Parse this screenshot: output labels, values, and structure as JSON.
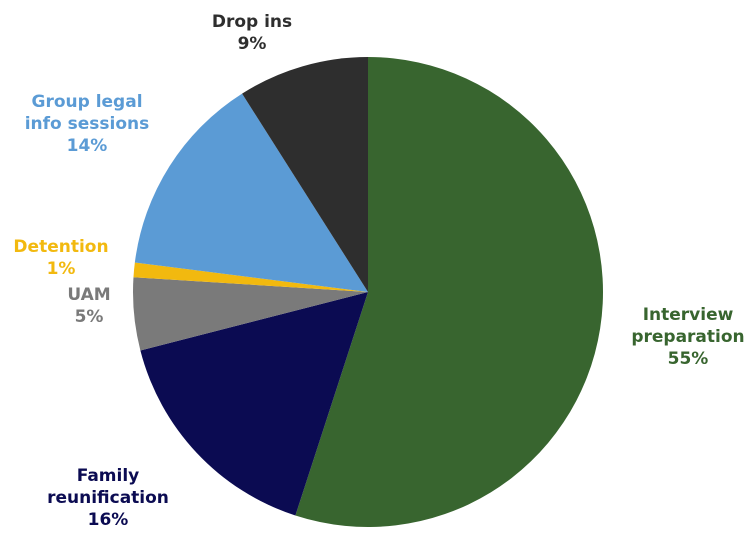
{
  "chart_data": {
    "type": "pie",
    "title": "",
    "slices": [
      {
        "label_lines": [
          "Interview",
          "preparation"
        ],
        "value": 55,
        "percent_label": "55%",
        "color": "#38652f"
      },
      {
        "label_lines": [
          "Family",
          "reunification"
        ],
        "value": 16,
        "percent_label": "16%",
        "color": "#0b0b52"
      },
      {
        "label_lines": [
          "UAM"
        ],
        "value": 5,
        "percent_label": "5%",
        "color": "#7a7a7a"
      },
      {
        "label_lines": [
          "Detention"
        ],
        "value": 1,
        "percent_label": "1%",
        "color": "#f2b90f"
      },
      {
        "label_lines": [
          "Group legal",
          "info sessions"
        ],
        "value": 14,
        "percent_label": "14%",
        "color": "#5b9bd5"
      },
      {
        "label_lines": [
          "Drop ins"
        ],
        "value": 9,
        "percent_label": "9%",
        "color": "#2e2e2e"
      }
    ],
    "label_colors": {
      "Interview": "#38652f",
      "Family": "#0b0b52",
      "UAM": "#7a7a7a",
      "Detention": "#f2b90f",
      "Group legal": "#5b9bd5",
      "Drop ins": "#2e2e2e"
    },
    "start": "12 o'clock",
    "direction": "clockwise",
    "legend": "none"
  }
}
